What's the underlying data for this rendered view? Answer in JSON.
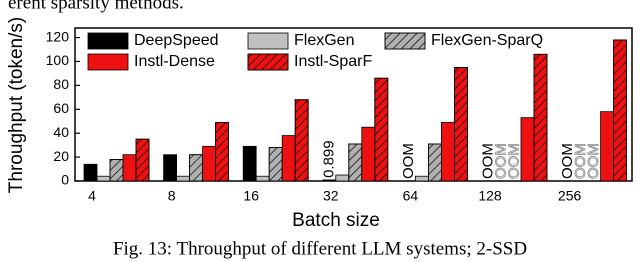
{
  "above_text": "erent sparsity methods.",
  "caption": "Fig. 13: Throughput of different LLM systems; 2-SSD",
  "chart_data": {
    "type": "bar",
    "y_label": "Throughput (token/s)",
    "x_label": "Batch size",
    "categories": [
      "4",
      "8",
      "16",
      "32",
      "64",
      "128",
      "256"
    ],
    "ylim": [
      0,
      128
    ],
    "yticks": [
      0,
      20,
      40,
      60,
      80,
      100,
      120
    ],
    "series": [
      {
        "name": "DeepSpeed",
        "color": "#000000",
        "hatch": false,
        "values": [
          14,
          22,
          29,
          0.899,
          null,
          null,
          null
        ],
        "value_labels": [
          null,
          null,
          null,
          "0.899",
          "OOM",
          "OOM",
          "OOM"
        ]
      },
      {
        "name": "FlexGen",
        "color": "#c0c0c0",
        "hatch": false,
        "values": [
          4,
          4,
          4,
          5,
          4,
          null,
          null
        ],
        "value_labels": [
          null,
          null,
          null,
          null,
          null,
          "OOM",
          "OOM"
        ]
      },
      {
        "name": "FlexGen-SparQ",
        "color": "#b0b0b0",
        "hatch": true,
        "values": [
          18,
          22,
          28,
          31,
          31,
          null,
          null
        ],
        "value_labels": [
          null,
          null,
          null,
          null,
          null,
          "OOM",
          "OOM"
        ]
      },
      {
        "name": "Instl-Dense",
        "color": "#ee1111",
        "hatch": false,
        "values": [
          22,
          29,
          38,
          45,
          49,
          53,
          58
        ]
      },
      {
        "name": "Instl-SparF",
        "color": "#ee1111",
        "hatch": true,
        "values": [
          35,
          49,
          68,
          86,
          95,
          106,
          118
        ]
      }
    ]
  }
}
